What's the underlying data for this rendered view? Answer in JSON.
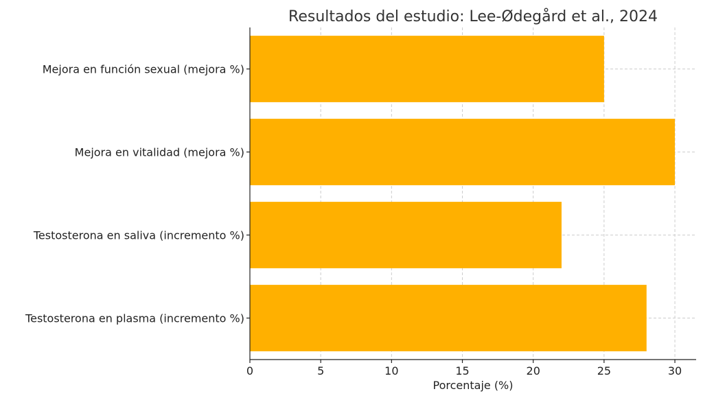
{
  "chart_data": {
    "type": "bar",
    "orientation": "horizontal",
    "title": "Resultados del estudio: Lee-Ødegård et al., 2024",
    "xlabel": "Porcentaje (%)",
    "ylabel": "",
    "categories": [
      "Mejora en función sexual (mejora %)",
      "Mejora en vitalidad (mejora %)",
      "Testosterona en saliva (incremento %)",
      "Testosterona en plasma (incremento %)"
    ],
    "values": [
      25,
      30,
      22,
      28
    ],
    "xlim": [
      0,
      31.5
    ],
    "xticks": [
      0,
      5,
      10,
      15,
      20,
      25,
      30
    ],
    "xtick_labels": [
      "0",
      "5",
      "10",
      "15",
      "20",
      "25",
      "30"
    ],
    "bar_color": "#FFB000",
    "grid": true
  }
}
